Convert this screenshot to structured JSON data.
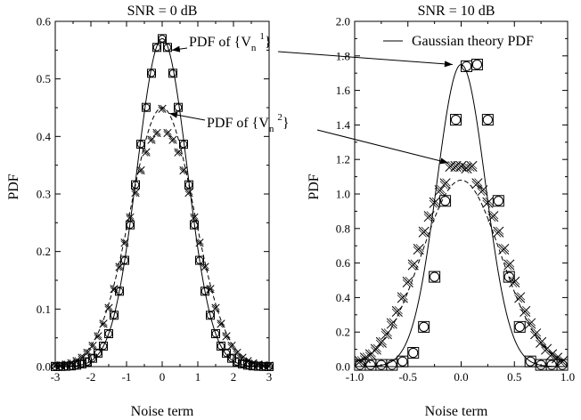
{
  "chart_data": [
    {
      "type": "scatter",
      "title": "SNR = 0 dB",
      "xlabel": "Noise term",
      "ylabel": "PDF",
      "xlim": [
        -3,
        3
      ],
      "ylim": [
        0,
        0.6
      ],
      "xticks": [
        -3,
        -2,
        -1,
        0,
        1,
        2,
        3
      ],
      "yticks": [
        0.0,
        0.1,
        0.2,
        0.3,
        0.4,
        0.5,
        0.6
      ],
      "xtick_labels": [
        "-3",
        "-2",
        "-1",
        "0",
        "1",
        "2",
        "3"
      ],
      "ytick_labels": [
        "0.0",
        "0.1",
        "0.2",
        "0.3",
        "0.4",
        "0.5",
        "0.6"
      ],
      "grid": false,
      "annotations": [
        {
          "id": "v1",
          "text_before": "PDF of {V",
          "sub": "n",
          "sup": "1",
          "text_after": "}",
          "target": [
            0.45,
            0.54
          ]
        },
        {
          "id": "v2",
          "text_before": "PDF of {V",
          "sub": "n",
          "sup": "2",
          "text_after": "}",
          "target": [
            0.3,
            0.44
          ]
        }
      ],
      "series": [
        {
          "marker": "square",
          "line": "solid",
          "sigma": 0.7,
          "x": [
            -3.0,
            -2.85,
            -2.7,
            -2.55,
            -2.4,
            -2.25,
            -2.1,
            -1.95,
            -1.8,
            -1.65,
            -1.5,
            -1.35,
            -1.2,
            -1.05,
            -0.9,
            -0.75,
            -0.6,
            -0.45,
            -0.3,
            -0.15,
            0.0,
            0.15,
            0.3,
            0.45,
            0.6,
            0.75,
            0.9,
            1.05,
            1.2,
            1.35,
            1.5,
            1.65,
            1.8,
            1.95,
            2.1,
            2.25,
            2.4,
            2.55,
            2.7,
            2.85,
            3.0
          ],
          "y": [
            0.0001,
            0.0003,
            0.0006,
            0.0012,
            0.0025,
            0.0047,
            0.0085,
            0.0145,
            0.0234,
            0.0357,
            0.0572,
            0.0893,
            0.131,
            0.1847,
            0.2463,
            0.316,
            0.3865,
            0.4505,
            0.5098,
            0.5547,
            0.57,
            0.5547,
            0.5098,
            0.4505,
            0.3865,
            0.316,
            0.2463,
            0.1847,
            0.131,
            0.0893,
            0.0572,
            0.0357,
            0.0234,
            0.0145,
            0.0085,
            0.0047,
            0.0025,
            0.0012,
            0.0006,
            0.0003,
            0.0001
          ]
        },
        {
          "marker": "circle",
          "line": "solid",
          "sigma": 0.7,
          "x": [
            -3.0,
            -2.85,
            -2.7,
            -2.55,
            -2.4,
            -2.25,
            -2.1,
            -1.95,
            -1.8,
            -1.65,
            -1.5,
            -1.35,
            -1.2,
            -1.05,
            -0.9,
            -0.75,
            -0.6,
            -0.45,
            -0.3,
            -0.15,
            0.0,
            0.15,
            0.3,
            0.45,
            0.6,
            0.75,
            0.9,
            1.05,
            1.2,
            1.35,
            1.5,
            1.65,
            1.8,
            1.95,
            2.1,
            2.25,
            2.4,
            2.55,
            2.7,
            2.85,
            3.0
          ],
          "y": [
            0.0001,
            0.0003,
            0.0006,
            0.0012,
            0.0025,
            0.0047,
            0.0085,
            0.0145,
            0.0234,
            0.0357,
            0.0572,
            0.0893,
            0.131,
            0.1847,
            0.2463,
            0.316,
            0.3865,
            0.4505,
            0.5098,
            0.5547,
            0.57,
            0.5547,
            0.5098,
            0.4505,
            0.3865,
            0.316,
            0.2463,
            0.1847,
            0.131,
            0.0893,
            0.0572,
            0.0357,
            0.0234,
            0.0145,
            0.0085,
            0.0047,
            0.0025,
            0.0012,
            0.0006,
            0.0003,
            0.0001
          ]
        },
        {
          "marker": "cross",
          "line": "dashed",
          "sigma": 0.89,
          "x": [
            -3.0,
            -2.85,
            -2.7,
            -2.55,
            -2.4,
            -2.25,
            -2.1,
            -1.95,
            -1.8,
            -1.65,
            -1.5,
            -1.35,
            -1.2,
            -1.05,
            -0.9,
            -0.75,
            -0.6,
            -0.45,
            -0.3,
            -0.15,
            0.0,
            0.15,
            0.3,
            0.45,
            0.6,
            0.75,
            0.9,
            1.05,
            1.2,
            1.35,
            1.5,
            1.65,
            1.8,
            1.95,
            2.1,
            2.25,
            2.4,
            2.55,
            2.7,
            2.85,
            3.0
          ],
          "y": [
            0.0016,
            0.0023,
            0.0036,
            0.0058,
            0.0096,
            0.0154,
            0.024,
            0.0362,
            0.0527,
            0.0744,
            0.1018,
            0.1349,
            0.1732,
            0.2153,
            0.2593,
            0.3022,
            0.341,
            0.3724,
            0.3941,
            0.406,
            0.448,
            0.406,
            0.3941,
            0.3724,
            0.341,
            0.3022,
            0.2593,
            0.2153,
            0.1732,
            0.1349,
            0.1018,
            0.0744,
            0.0527,
            0.0362,
            0.024,
            0.0154,
            0.0096,
            0.0058,
            0.0036,
            0.0023,
            0.0016
          ]
        }
      ],
      "curves": [
        {
          "line": "solid",
          "sigma": 0.7,
          "peak": 0.57
        },
        {
          "line": "dashed",
          "sigma": 0.89,
          "peak": 0.45
        }
      ]
    },
    {
      "type": "scatter",
      "title": "SNR = 10 dB",
      "xlabel": "Noise term",
      "ylabel": "PDF",
      "xlim": [
        -1.0,
        1.0
      ],
      "ylim": [
        0,
        2.0
      ],
      "xticks": [
        -1.0,
        -0.5,
        0.0,
        0.5,
        1.0
      ],
      "yticks": [
        0.0,
        0.2,
        0.4,
        0.6,
        0.8,
        1.0,
        1.2,
        1.4,
        1.6,
        1.8,
        2.0
      ],
      "xtick_labels": [
        "-1.0",
        "-0.5",
        "0.0",
        "0.5",
        "1.0"
      ],
      "ytick_labels": [
        "0.0",
        "0.2",
        "0.4",
        "0.6",
        "0.8",
        "1.0",
        "1.2",
        "1.4",
        "1.6",
        "1.8",
        "2.0"
      ],
      "grid": false,
      "legend": {
        "position": "top-right",
        "entries": [
          {
            "line": "solid",
            "label": "Gaussian theory PDF"
          }
        ]
      },
      "series": [
        {
          "marker": "square",
          "x": [
            -0.95,
            -0.85,
            -0.75,
            -0.65,
            -0.55,
            -0.45,
            -0.35,
            -0.25,
            -0.15,
            -0.05,
            0.05,
            0.15,
            0.25,
            0.35,
            0.45,
            0.55,
            0.65,
            0.75,
            0.85,
            0.95
          ],
          "y": [
            0.01,
            0.01,
            0.01,
            0.01,
            0.03,
            0.08,
            0.23,
            0.52,
            0.96,
            1.43,
            1.74,
            1.75,
            1.43,
            0.96,
            0.52,
            0.23,
            0.03,
            0.01,
            0.01,
            0.01
          ]
        },
        {
          "marker": "circle",
          "x": [
            -0.95,
            -0.85,
            -0.75,
            -0.65,
            -0.55,
            -0.45,
            -0.35,
            -0.25,
            -0.15,
            -0.05,
            0.05,
            0.15,
            0.25,
            0.35,
            0.45,
            0.55,
            0.65,
            0.75,
            0.85,
            0.95
          ],
          "y": [
            0.01,
            0.01,
            0.01,
            0.01,
            0.03,
            0.08,
            0.23,
            0.52,
            0.96,
            1.43,
            1.74,
            1.75,
            1.43,
            0.96,
            0.52,
            0.23,
            0.03,
            0.01,
            0.01,
            0.01
          ]
        },
        {
          "marker": "cross",
          "x": [
            -0.95,
            -0.9,
            -0.85,
            -0.8,
            -0.75,
            -0.7,
            -0.65,
            -0.6,
            -0.55,
            -0.5,
            -0.45,
            -0.4,
            -0.35,
            -0.3,
            -0.25,
            -0.2,
            -0.15,
            -0.1,
            -0.05,
            0.0,
            0.05,
            0.1,
            0.15,
            0.2,
            0.25,
            0.3,
            0.35,
            0.4,
            0.45,
            0.5,
            0.55,
            0.6,
            0.65,
            0.7,
            0.75,
            0.8,
            0.85,
            0.9,
            0.95
          ],
          "y": [
            0.03,
            0.05,
            0.07,
            0.1,
            0.14,
            0.19,
            0.25,
            0.32,
            0.4,
            0.49,
            0.59,
            0.68,
            0.78,
            0.87,
            0.95,
            1.02,
            1.06,
            1.16,
            1.16,
            1.16,
            1.15,
            1.16,
            1.06,
            1.02,
            0.95,
            0.87,
            0.78,
            0.68,
            0.59,
            0.49,
            0.4,
            0.32,
            0.25,
            0.19,
            0.14,
            0.1,
            0.07,
            0.05,
            0.03
          ]
        }
      ],
      "curves": [
        {
          "line": "solid",
          "sigma": 0.2285,
          "peak": 1.75
        },
        {
          "line": "dashed",
          "sigma": 0.37,
          "peak": 1.08
        }
      ]
    }
  ]
}
